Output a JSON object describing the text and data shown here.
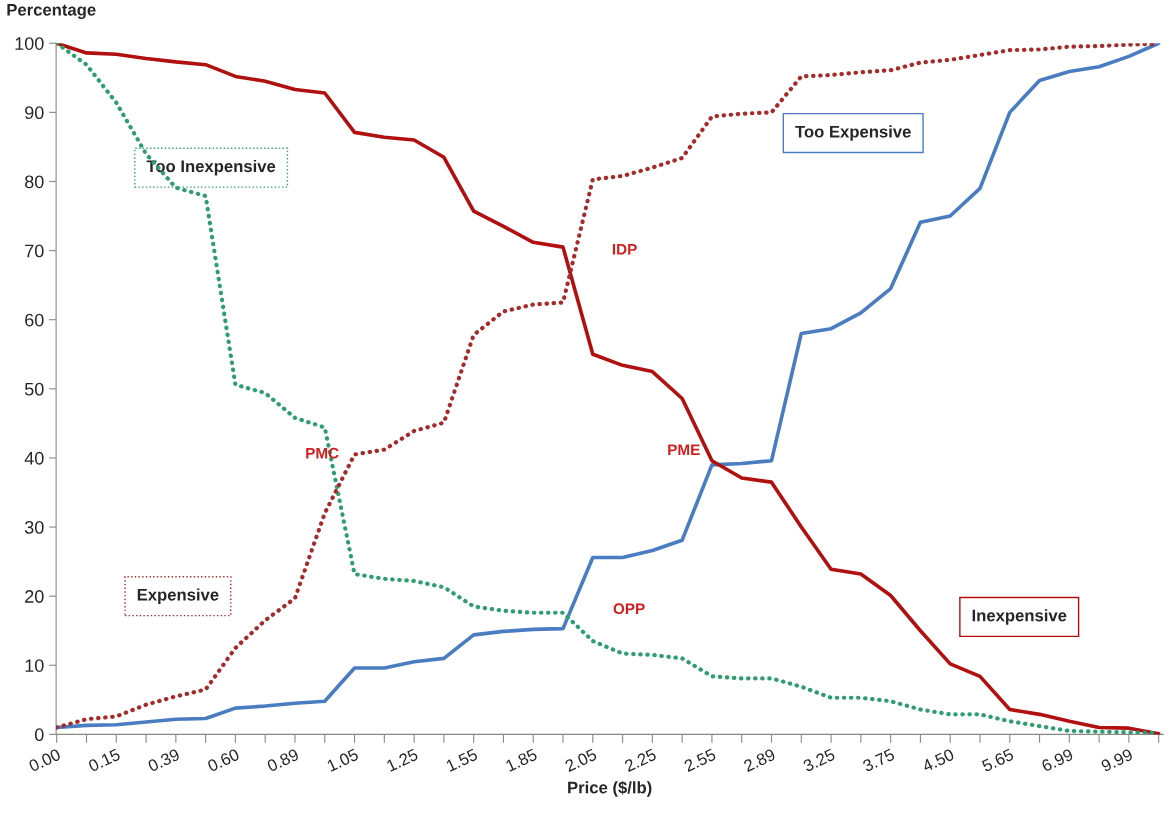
{
  "chart_data": {
    "type": "line",
    "xlabel": "Price ($/lb)",
    "ylabel": "Percentage",
    "categories": [
      "0.00",
      null,
      "0.15",
      null,
      "0.39",
      null,
      "0.60",
      null,
      "0.89",
      null,
      "1.05",
      null,
      "1.25",
      null,
      "1.55",
      null,
      "1.85",
      null,
      "2.05",
      null,
      "2.25",
      null,
      "2.55",
      null,
      "2.89",
      null,
      "3.25",
      null,
      "3.75",
      null,
      "4.50",
      null,
      "5.65",
      null,
      "6.99",
      null,
      "9.99",
      null
    ],
    "series": [
      {
        "name": "Too Inexpensive",
        "color": "#2e9e6e",
        "line_style": "dotted",
        "values": [
          100,
          96.9,
          91.4,
          84,
          79.1,
          77.9,
          50.6,
          49.4,
          45.8,
          44.4,
          23.2,
          22.5,
          22.2,
          21.3,
          18.5,
          17.9,
          17.6,
          17.6,
          13.5,
          11.7,
          11.5,
          11.0,
          8.4,
          8.1,
          8.1,
          6.9,
          5.3,
          5.3,
          4.8,
          3.6,
          2.9,
          2.9,
          1.9,
          1.2,
          0.5,
          0.4,
          0.3,
          0.2
        ]
      },
      {
        "name": "Expensive",
        "color": "#a52a2a",
        "line_style": "dotted",
        "values": [
          1.0,
          2.2,
          2.6,
          4.3,
          5.5,
          6.5,
          12.5,
          16.5,
          19.7,
          32,
          40.5,
          41.2,
          43.9,
          45.1,
          57.8,
          61.2,
          62.2,
          62.5,
          80.3,
          80.8,
          82.0,
          83.4,
          89.4,
          89.8,
          90.0,
          95.2,
          95.4,
          95.8,
          96.1,
          97.2,
          97.6,
          98.3,
          99.0,
          99.1,
          99.5,
          99.6,
          99.8,
          99.9
        ]
      },
      {
        "name": "Too Expensive",
        "color": "#4a7cc2",
        "line_style": "solid",
        "values": [
          1.0,
          1.3,
          1.4,
          1.8,
          2.2,
          2.3,
          3.8,
          4.1,
          4.5,
          4.8,
          9.6,
          9.6,
          10.5,
          11.0,
          14.4,
          14.9,
          15.2,
          15.3,
          25.6,
          25.6,
          26.6,
          28.1,
          39.0,
          39.2,
          39.6,
          58,
          58.7,
          61,
          64.5,
          74.1,
          75,
          79,
          90,
          94.6,
          95.9,
          96.6,
          98.1,
          100
        ]
      },
      {
        "name": "Inexpensive",
        "color": "#b01010",
        "line_style": "solid",
        "values": [
          100,
          98.6,
          98.4,
          97.8,
          97.3,
          96.9,
          95.2,
          94.5,
          93.3,
          92.8,
          87.1,
          86.4,
          86.0,
          83.5,
          75.7,
          73.5,
          71.2,
          70.5,
          55,
          53.4,
          52.5,
          48.6,
          39.6,
          37.1,
          36.5,
          30,
          23.9,
          23.2,
          20.1,
          15,
          10.2,
          8.4,
          3.6,
          2.9,
          1.9,
          1.0,
          0.9,
          0.1
        ]
      }
    ],
    "ylim": [
      0,
      100
    ],
    "yticks": [
      0,
      10,
      20,
      30,
      40,
      50,
      60,
      70,
      80,
      90,
      100
    ],
    "grid": false,
    "legend": false,
    "marker": "none",
    "annotations": [
      "PMC",
      "IDP",
      "PME",
      "OPP"
    ]
  }
}
